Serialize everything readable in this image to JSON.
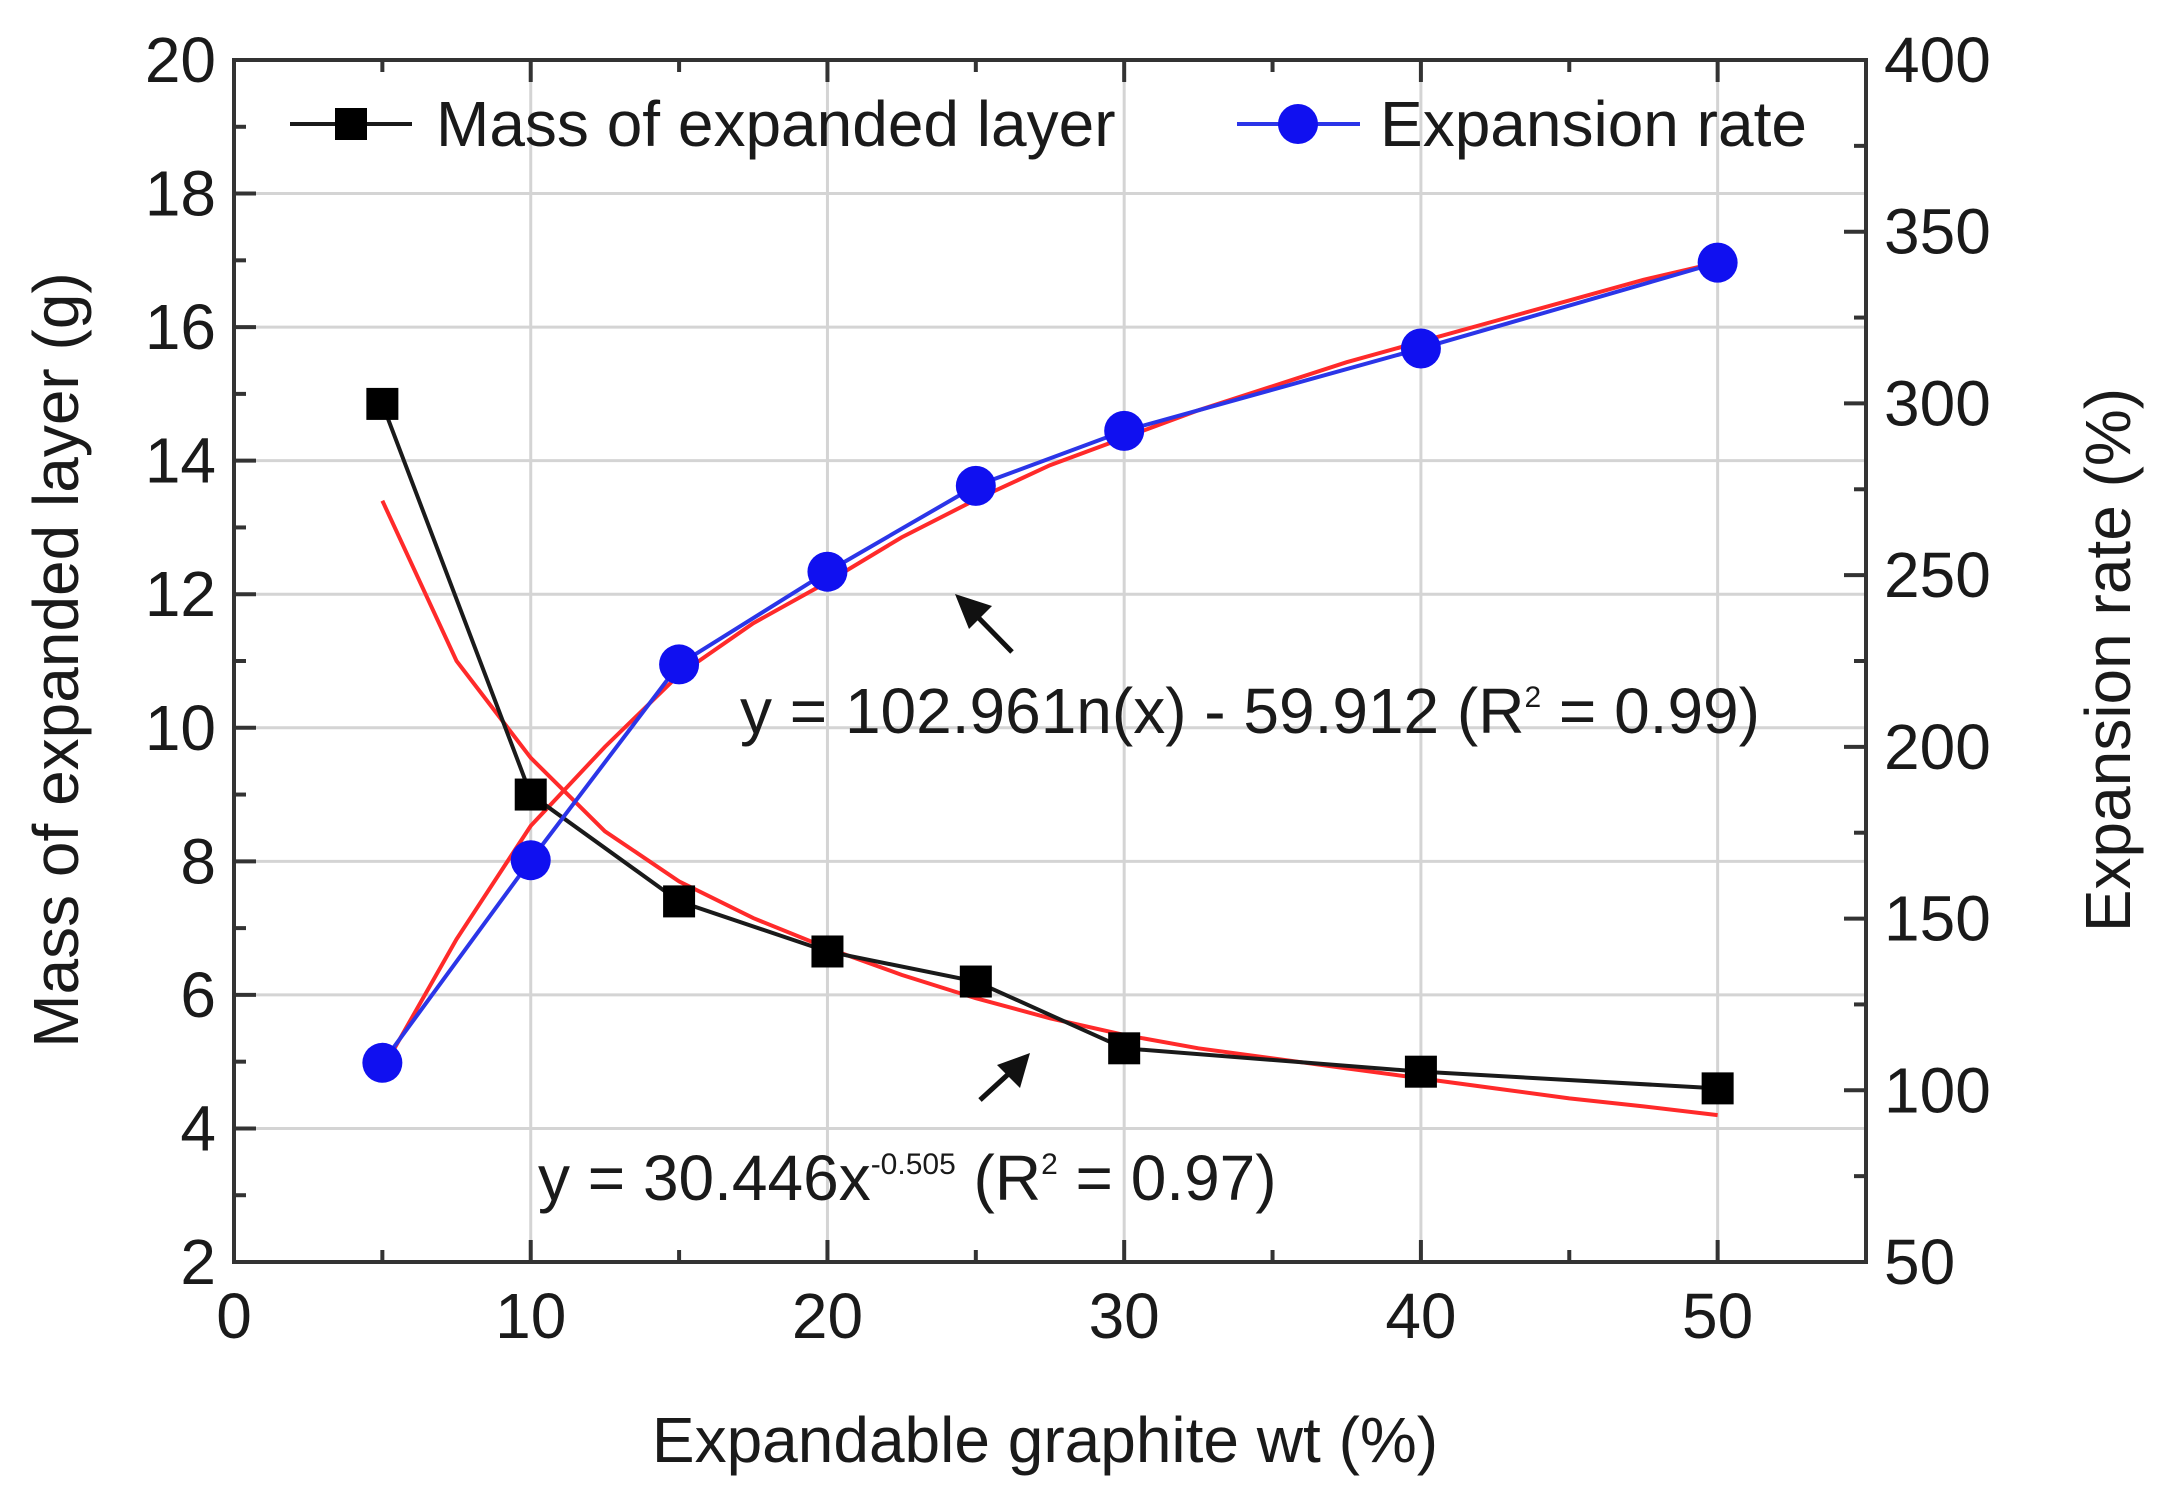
{
  "chart_data": {
    "type": "line",
    "xlabel": "Expandable graphite wt (%)",
    "ylabel": "Mass of expanded layer (g)",
    "y2label": "Expansion rate (%)",
    "xlim": [
      0,
      55
    ],
    "ylim": [
      2,
      20
    ],
    "y2lim": [
      50,
      400
    ],
    "xticks": [
      "0",
      "10",
      "20",
      "30",
      "40",
      "50"
    ],
    "yticks": [
      "2",
      "4",
      "6",
      "8",
      "10",
      "12",
      "14",
      "16",
      "18",
      "20"
    ],
    "y2ticks": [
      "50",
      "100",
      "150",
      "200",
      "250",
      "300",
      "350",
      "400"
    ],
    "grid": true,
    "legend_position": "top",
    "series": [
      {
        "name": "Mass of expanded layer",
        "axis": "left",
        "marker": "square",
        "color": "#1a1a1a",
        "x": [
          5,
          10,
          15,
          20,
          25,
          30,
          40,
          50
        ],
        "y": [
          14.85,
          9.0,
          7.4,
          6.65,
          6.2,
          5.2,
          4.85,
          4.6
        ]
      },
      {
        "name": "Expansion rate",
        "axis": "right",
        "marker": "circle",
        "color": "#2b35e8",
        "x": [
          5,
          10,
          15,
          20,
          25,
          30,
          40,
          50
        ],
        "y": [
          108,
          167,
          224,
          251,
          276,
          292,
          316,
          341
        ]
      }
    ],
    "fits": [
      {
        "axis": "left",
        "color": "#ff2a2a",
        "x": [
          5,
          7.5,
          10,
          12.5,
          15,
          17.5,
          20,
          22.5,
          25,
          27.5,
          30,
          32.5,
          35,
          37.5,
          40,
          42.5,
          45,
          47.5,
          50
        ],
        "y": [
          13.4,
          11.0,
          9.55,
          8.45,
          7.7,
          7.15,
          6.7,
          6.3,
          5.95,
          5.65,
          5.4,
          5.2,
          5.05,
          4.9,
          4.75,
          4.6,
          4.45,
          4.33,
          4.2
        ]
      },
      {
        "axis": "right",
        "color": "#ff2a2a",
        "x": [
          5,
          7.5,
          10,
          12.5,
          15,
          17.5,
          20,
          22.5,
          25,
          27.5,
          30,
          32.5,
          35,
          37.5,
          40,
          42.5,
          45,
          47.5,
          50
        ],
        "y": [
          106,
          144,
          177,
          200,
          221,
          236,
          248,
          261,
          272,
          282,
          290,
          298,
          305,
          312,
          318,
          324,
          330,
          336,
          341
        ]
      }
    ],
    "annotations": [
      {
        "prefix": "y = 102.961n(x) - 59.912 (R",
        "sup": "2",
        "suffix": " = 0.99)"
      },
      {
        "prefix": "y = 30.446x",
        "sup": "-0.505",
        "suffix": " (R",
        "sup2": "2",
        "suffix2": " = 0.97)"
      }
    ]
  }
}
